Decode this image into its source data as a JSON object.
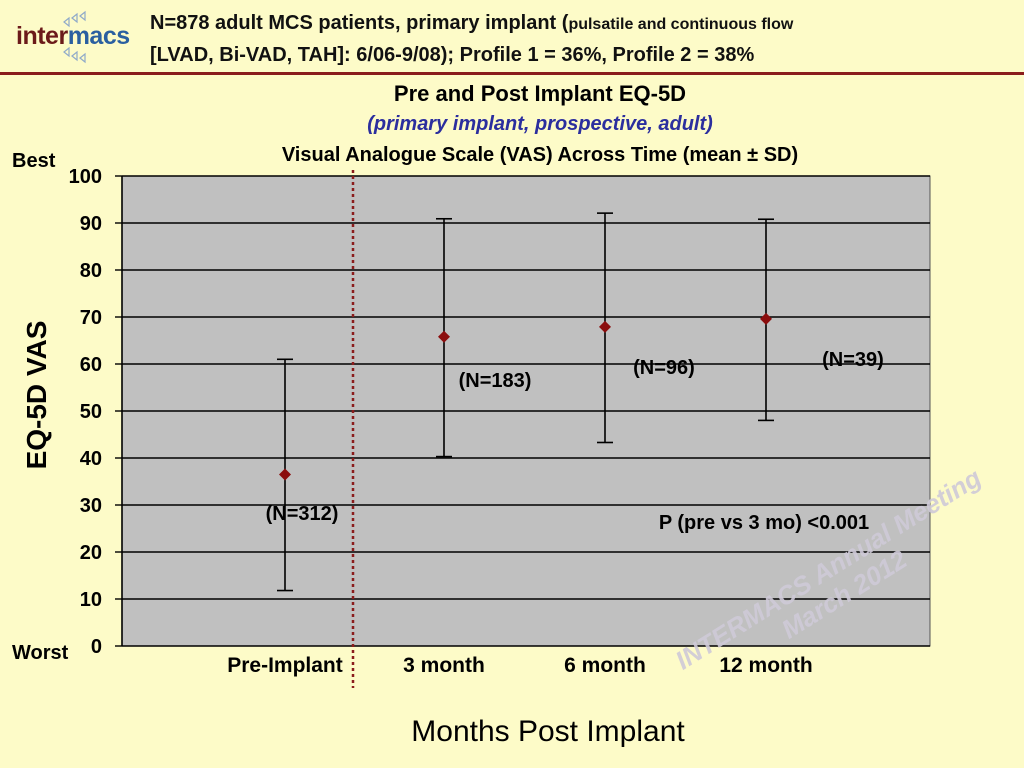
{
  "logo": {
    "part1": "inter",
    "part2": "macs"
  },
  "header": {
    "line1_main": "N=878 adult MCS patients, primary implant (",
    "line1_small": "pulsatile and continuous flow",
    "line2": "[LVAD, Bi-VAD, TAH]: 6/06-9/08); Profile 1 = 36%, Profile 2 = 38%"
  },
  "chart_data": {
    "type": "scatter",
    "title": "Pre and Post Implant EQ-5D",
    "subtitle": "(primary implant, prospective, adult)",
    "subtitle2": "Visual Analogue Scale (VAS) Across Time (mean ± SD)",
    "xlabel": "Months Post Implant",
    "ylabel": "EQ-5D VAS",
    "ylim": [
      0,
      100
    ],
    "yticks": [
      0,
      10,
      20,
      30,
      40,
      50,
      60,
      70,
      80,
      90,
      100
    ],
    "y_top_label": "Best",
    "y_bottom_label": "Worst",
    "categories": [
      "Pre-Implant",
      "3 month",
      "6 month",
      "12 month"
    ],
    "means": [
      36.5,
      65.8,
      67.9,
      69.6
    ],
    "error_low": [
      11.8,
      40.3,
      43.3,
      48.0
    ],
    "error_high": [
      61.0,
      90.9,
      92.1,
      90.8
    ],
    "n_labels": [
      "(N=312)",
      "(N=183)",
      "(N=96)",
      "(N=39)"
    ],
    "annotation": "P (pre vs 3 mo) <0.001",
    "marker_color": "#8b0d0d",
    "plot_bg": "#c0c0c0",
    "divider_color": "#8b1c1c",
    "grid": true
  },
  "watermark": {
    "line1": "INTERMACS Annual Meeting",
    "line2": "March 2012"
  }
}
